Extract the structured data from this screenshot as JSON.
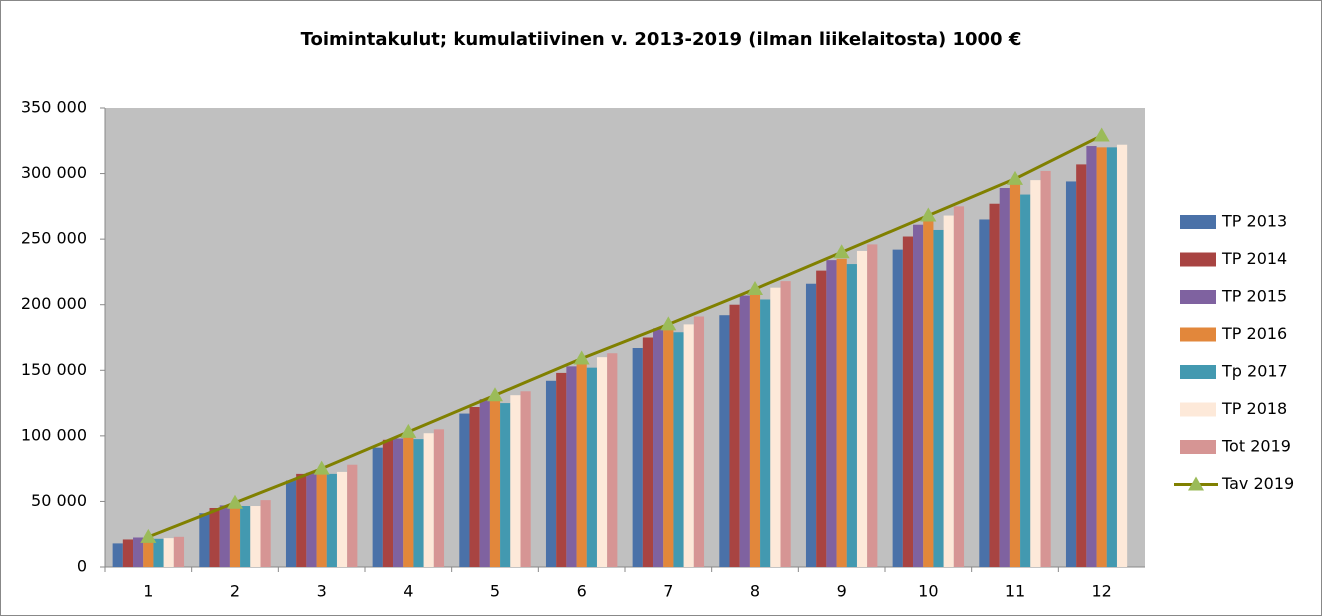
{
  "chart_data": {
    "type": "bar",
    "title": "Toimintakulut; kumulatiivinen v. 2013-2019 (ilman liikelaitosta) 1000 €",
    "categories": [
      "1",
      "2",
      "3",
      "4",
      "5",
      "6",
      "7",
      "8",
      "9",
      "10",
      "11",
      "12"
    ],
    "series": [
      {
        "name": "TP 2013",
        "color": "#4a71a8",
        "values": [
          18000,
          41000,
          66000,
          91000,
          117000,
          142000,
          167000,
          192000,
          216000,
          242000,
          265000,
          294000
        ]
      },
      {
        "name": "TP 2014",
        "color": "#a84442",
        "values": [
          21000,
          45000,
          71000,
          97000,
          122000,
          148000,
          175000,
          200000,
          226000,
          252000,
          277000,
          307000
        ]
      },
      {
        "name": "TP 2015",
        "color": "#7f62a0",
        "values": [
          22500,
          47000,
          72000,
          98000,
          128000,
          153000,
          182000,
          207000,
          234000,
          261000,
          289000,
          321000
        ]
      },
      {
        "name": "TP 2016",
        "color": "#e2873b",
        "values": [
          22000,
          47000,
          72000,
          100000,
          128000,
          155000,
          184000,
          208000,
          235000,
          265000,
          292000,
          320000
        ]
      },
      {
        "name": "Tp 2017",
        "color": "#4399b0",
        "values": [
          21500,
          46500,
          71000,
          97500,
          125000,
          152000,
          179000,
          204000,
          231000,
          257000,
          284000,
          320000
        ]
      },
      {
        "name": "TP 2018",
        "color": "#fde9d9",
        "values": [
          22000,
          46500,
          72500,
          102000,
          131000,
          160000,
          185000,
          213000,
          241000,
          268000,
          295000,
          322000
        ]
      },
      {
        "name": "Tot 2019",
        "color": "#d69594",
        "values": [
          23000,
          51000,
          78000,
          105000,
          134000,
          163000,
          191000,
          218000,
          246000,
          275000,
          302000,
          null
        ]
      },
      {
        "name": "Tav 2019",
        "type": "line",
        "color": "#808000",
        "marker_color": "#9bbb59",
        "values": [
          23000,
          49000,
          75000,
          103000,
          131000,
          159000,
          185000,
          212000,
          240000,
          268000,
          296000,
          329000
        ]
      }
    ],
    "ylim": [
      0,
      350000
    ],
    "yticks": [
      0,
      {
        "value": 50000,
        "label": "50 000"
      },
      {
        "value": 100000,
        "label": "100 000"
      },
      {
        "value": 150000,
        "label": "150 000"
      },
      {
        "value": 200000,
        "label": "200 000"
      },
      {
        "value": 250000,
        "label": "250 000"
      },
      {
        "value": 300000,
        "label": "300 000"
      },
      {
        "value": 350000,
        "label": "350 000"
      }
    ],
    "grid": false,
    "plot_background": "#c0c0c0",
    "legend": "right"
  }
}
